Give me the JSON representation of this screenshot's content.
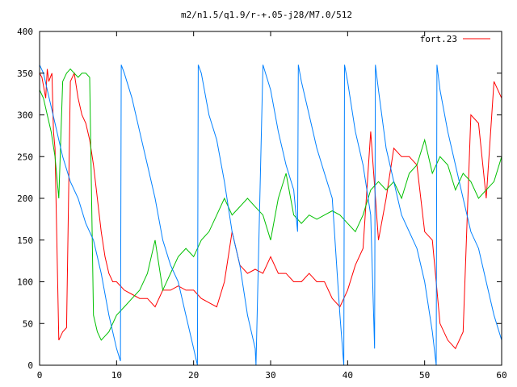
{
  "chart_data": {
    "type": "line",
    "title": "m2/n1.5/q1.9/r-+.05-j28/M7.0/512",
    "xlabel": "",
    "ylabel": "",
    "xlim": [
      0,
      60
    ],
    "ylim": [
      0,
      400
    ],
    "x_ticks": [
      0,
      10,
      20,
      30,
      40,
      50,
      60
    ],
    "y_ticks": [
      0,
      50,
      100,
      150,
      200,
      250,
      300,
      350,
      400
    ],
    "grid": false,
    "legend_position": "top-right",
    "colors": {
      "red": "#ff0000",
      "green": "#00c000",
      "blue": "#0080ff",
      "axis": "#000000"
    },
    "series": [
      {
        "name": "fort.23",
        "color": "#ff0000",
        "x": [
          0.0,
          0.3,
          0.5,
          0.8,
          1.0,
          1.2,
          1.4,
          1.6,
          1.8,
          2.0,
          2.5,
          3.0,
          3.5,
          4.0,
          4.5,
          5.0,
          5.5,
          6.0,
          6.5,
          7.0,
          7.5,
          8.0,
          8.5,
          9.0,
          9.5,
          10.0,
          10.5,
          11.0,
          12.0,
          13.0,
          14.0,
          15.0,
          16.0,
          17.0,
          18.0,
          19.0,
          20.0,
          21.0,
          22.0,
          23.0,
          24.0,
          25.0,
          26.0,
          27.0,
          28.0,
          29.0,
          30.0,
          31.0,
          32.0,
          33.0,
          34.0,
          35.0,
          36.0,
          37.0,
          38.0,
          39.0,
          40.0,
          41.0,
          42.0,
          43.0,
          44.0,
          45.0,
          46.0,
          47.0,
          48.0,
          49.0,
          50.0,
          51.0,
          52.0,
          53.0,
          54.0,
          55.0,
          56.0,
          57.0,
          58.0,
          59.0,
          60.0
        ],
        "y": [
          350,
          345,
          335,
          320,
          355,
          340,
          345,
          350,
          280,
          260,
          30,
          40,
          45,
          340,
          350,
          320,
          300,
          290,
          270,
          240,
          200,
          160,
          130,
          110,
          100,
          100,
          95,
          90,
          85,
          80,
          80,
          70,
          90,
          90,
          95,
          90,
          90,
          80,
          75,
          70,
          100,
          160,
          120,
          110,
          115,
          110,
          130,
          110,
          110,
          100,
          100,
          110,
          100,
          100,
          80,
          70,
          90,
          120,
          140,
          280,
          150,
          200,
          260,
          250,
          250,
          240,
          160,
          150,
          50,
          30,
          20,
          40,
          300,
          290,
          200,
          340,
          320
        ]
      },
      {
        "name": "",
        "color": "#00c000",
        "x": [
          0.0,
          0.5,
          1.0,
          1.5,
          2.0,
          2.5,
          3.0,
          3.5,
          4.0,
          4.5,
          5.0,
          5.5,
          6.0,
          6.5,
          7.0,
          7.5,
          8.0,
          8.5,
          9.0,
          10.0,
          11.0,
          12.0,
          13.0,
          14.0,
          15.0,
          16.0,
          17.0,
          18.0,
          19.0,
          20.0,
          21.0,
          22.0,
          23.0,
          24.0,
          25.0,
          26.0,
          27.0,
          28.0,
          29.0,
          30.0,
          31.0,
          32.0,
          33.0,
          34.0,
          35.0,
          36.0,
          37.0,
          38.0,
          39.0,
          40.0,
          41.0,
          42.0,
          43.0,
          44.0,
          45.0,
          46.0,
          47.0,
          48.0,
          49.0,
          50.0,
          51.0,
          52.0,
          53.0,
          54.0,
          55.0,
          56.0,
          57.0,
          58.0,
          59.0,
          60.0
        ],
        "y": [
          330,
          320,
          300,
          280,
          250,
          200,
          340,
          350,
          355,
          350,
          345,
          350,
          350,
          345,
          60,
          40,
          30,
          35,
          40,
          60,
          70,
          80,
          90,
          110,
          150,
          90,
          110,
          130,
          140,
          130,
          150,
          160,
          180,
          200,
          180,
          190,
          200,
          190,
          180,
          150,
          200,
          230,
          180,
          170,
          180,
          175,
          180,
          185,
          180,
          170,
          160,
          180,
          210,
          220,
          210,
          220,
          200,
          230,
          240,
          270,
          230,
          250,
          240,
          210,
          230,
          220,
          200,
          210,
          220,
          250
        ]
      },
      {
        "name": "",
        "color": "#0080ff",
        "x": [
          0.0,
          0.5,
          1.0,
          1.5,
          2.0,
          2.5,
          3.0,
          4.0,
          5.0,
          6.0,
          7.0,
          8.0,
          9.0,
          10.0,
          10.5,
          10.6,
          11.0,
          12.0,
          13.0,
          14.0,
          15.0,
          16.0,
          17.0,
          18.0,
          19.0,
          20.0,
          20.5,
          20.6,
          21.0,
          22.0,
          23.0,
          24.0,
          25.0,
          26.0,
          27.0,
          28.0,
          28.1,
          29.0,
          30.0,
          31.0,
          32.0,
          33.0,
          33.5,
          33.6,
          34.0,
          35.0,
          36.0,
          37.0,
          38.0,
          39.0,
          39.5,
          39.6,
          40.0,
          41.0,
          42.0,
          43.0,
          43.5,
          43.6,
          44.0,
          45.0,
          46.0,
          47.0,
          48.0,
          49.0,
          50.0,
          51.0,
          51.5,
          51.6,
          52.0,
          53.0,
          54.0,
          55.0,
          56.0,
          57.0,
          58.0,
          59.0,
          60.0
        ],
        "y": [
          360,
          350,
          330,
          310,
          290,
          270,
          250,
          220,
          200,
          170,
          150,
          110,
          60,
          20,
          5,
          360,
          350,
          320,
          280,
          240,
          200,
          150,
          120,
          100,
          60,
          20,
          0,
          360,
          350,
          300,
          270,
          220,
          160,
          120,
          60,
          20,
          0,
          360,
          330,
          280,
          240,
          210,
          160,
          360,
          340,
          300,
          260,
          230,
          200,
          60,
          0,
          360,
          340,
          280,
          240,
          180,
          20,
          360,
          330,
          260,
          220,
          180,
          160,
          140,
          100,
          40,
          0,
          360,
          330,
          280,
          240,
          200,
          160,
          140,
          100,
          60,
          30
        ]
      }
    ]
  }
}
